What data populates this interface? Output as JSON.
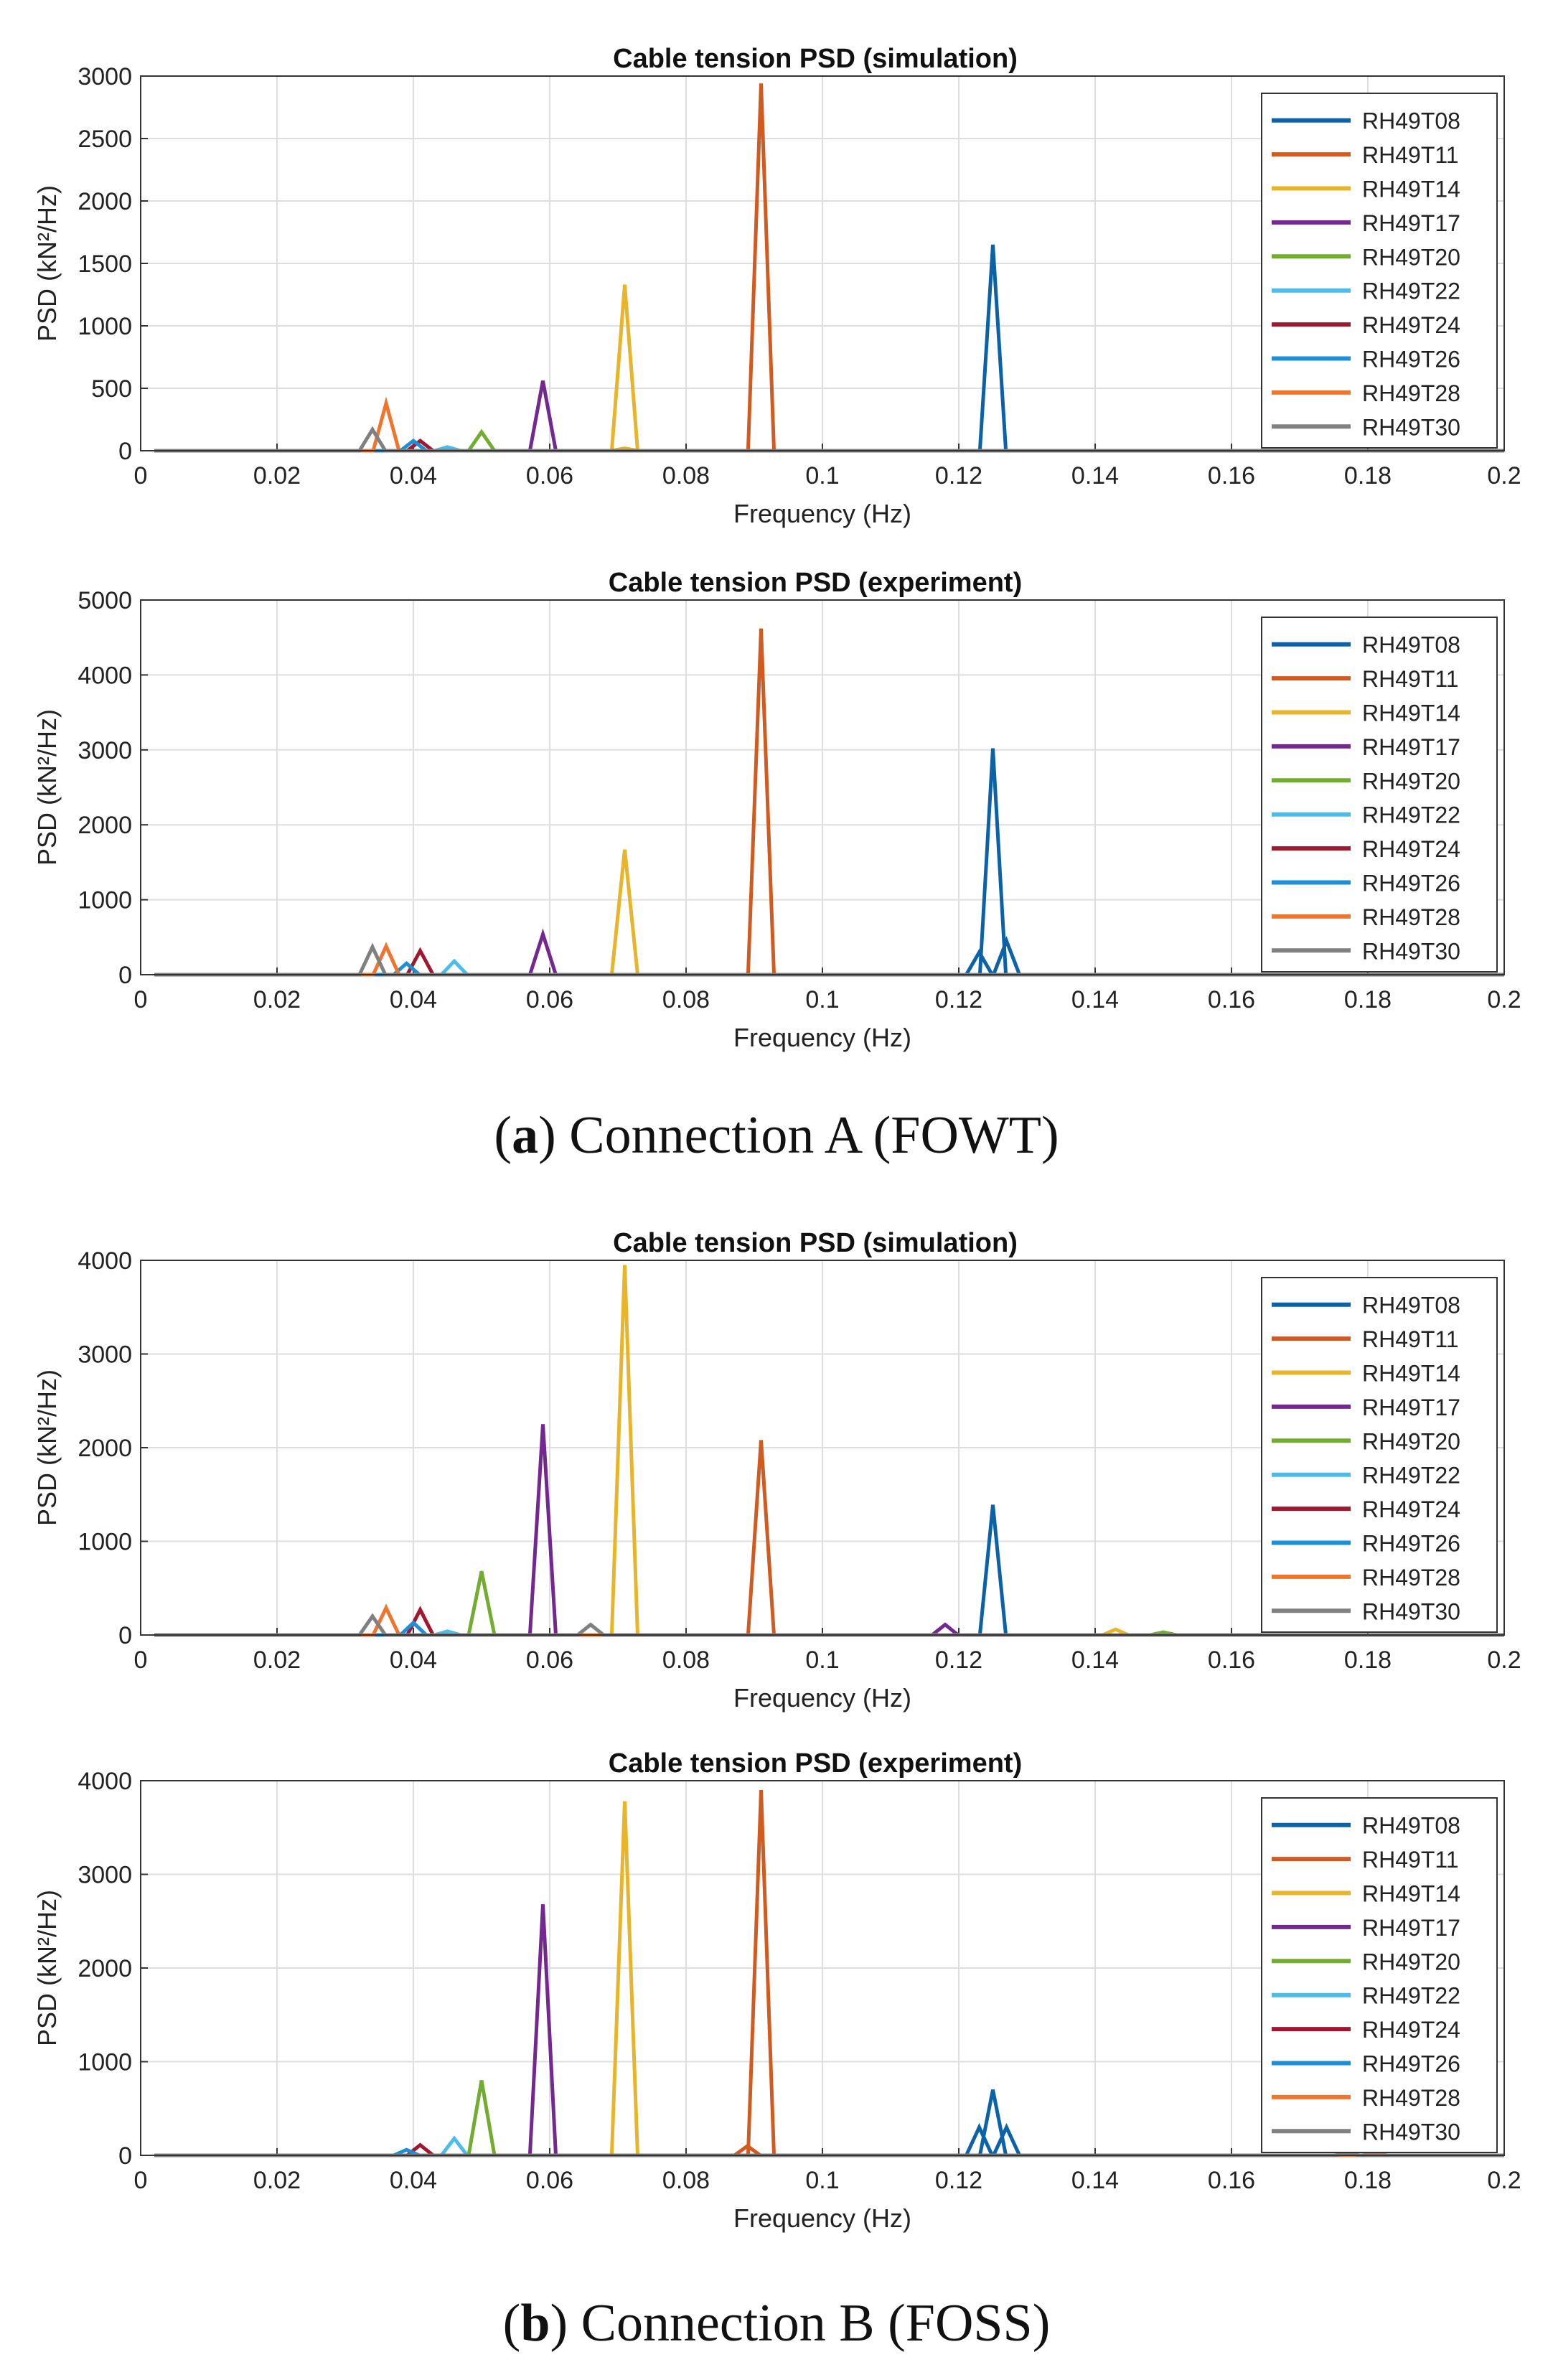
{
  "series_names": [
    "RH49T08",
    "RH49T11",
    "RH49T14",
    "RH49T17",
    "RH49T20",
    "RH49T22",
    "RH49T24",
    "RH49T26",
    "RH49T28",
    "RH49T30"
  ],
  "series_colors": [
    "#0b62a6",
    "#d05a1f",
    "#e7b42a",
    "#74278f",
    "#72ac30",
    "#4cbce8",
    "#a01730",
    "#1c8fd6",
    "#f0742c",
    "#808080"
  ],
  "captions": {
    "a_label": "a",
    "a_text": "Connection A (FOWT)",
    "b_label": "b",
    "b_text": "Connection B (FOSS)"
  },
  "chart_data": [
    {
      "type": "line",
      "title": "Cable tension PSD (simulation)",
      "xlabel": "Frequency (Hz)",
      "ylabel": "PSD (kN²/Hz)",
      "xlim": [
        0,
        0.2
      ],
      "ylim": [
        0,
        3000
      ],
      "xticks": [
        "0",
        "0.02",
        "0.04",
        "0.06",
        "0.08",
        "0.1",
        "0.12",
        "0.14",
        "0.16",
        "0.18",
        "0.2"
      ],
      "yticks": [
        "0",
        "500",
        "1000",
        "1500",
        "2000",
        "2500",
        "3000"
      ],
      "grid": true,
      "legend": "top-right",
      "peaks": [
        {
          "series": 0,
          "f": 0.125,
          "v": 1650
        },
        {
          "series": 1,
          "f": 0.091,
          "v": 2940
        },
        {
          "series": 2,
          "f": 0.071,
          "v": 1330
        },
        {
          "series": 2,
          "f": 0.071,
          "v": 20
        },
        {
          "series": 3,
          "f": 0.059,
          "v": 560
        },
        {
          "series": 4,
          "f": 0.05,
          "v": 150
        },
        {
          "series": 5,
          "f": 0.045,
          "v": 30
        },
        {
          "series": 6,
          "f": 0.041,
          "v": 80
        },
        {
          "series": 7,
          "f": 0.04,
          "v": 80
        },
        {
          "series": 8,
          "f": 0.036,
          "v": 380
        },
        {
          "series": 9,
          "f": 0.034,
          "v": 170
        }
      ]
    },
    {
      "type": "line",
      "title": "Cable tension PSD (experiment)",
      "xlabel": "Frequency (Hz)",
      "ylabel": "PSD (kN²/Hz)",
      "xlim": [
        0,
        0.2
      ],
      "ylim": [
        0,
        5000
      ],
      "xticks": [
        "0",
        "0.02",
        "0.04",
        "0.06",
        "0.08",
        "0.1",
        "0.12",
        "0.14",
        "0.16",
        "0.18",
        "0.2"
      ],
      "yticks": [
        "0",
        "1000",
        "2000",
        "3000",
        "4000",
        "5000"
      ],
      "grid": true,
      "legend": "top-right",
      "peaks": [
        {
          "series": 0,
          "f": 0.125,
          "v": 3020
        },
        {
          "series": 0,
          "f": 0.127,
          "v": 450
        },
        {
          "series": 0,
          "f": 0.123,
          "v": 300
        },
        {
          "series": 1,
          "f": 0.091,
          "v": 4620
        },
        {
          "series": 2,
          "f": 0.071,
          "v": 1670
        },
        {
          "series": 3,
          "f": 0.059,
          "v": 540
        },
        {
          "series": 5,
          "f": 0.046,
          "v": 180
        },
        {
          "series": 6,
          "f": 0.041,
          "v": 320
        },
        {
          "series": 7,
          "f": 0.039,
          "v": 150
        },
        {
          "series": 8,
          "f": 0.036,
          "v": 380
        },
        {
          "series": 9,
          "f": 0.034,
          "v": 370
        }
      ]
    },
    {
      "type": "line",
      "title": "Cable tension PSD (simulation)",
      "xlabel": "Frequency (Hz)",
      "ylabel": "PSD (kN²/Hz)",
      "xlim": [
        0,
        0.2
      ],
      "ylim": [
        0,
        4000
      ],
      "xticks": [
        "0",
        "0.02",
        "0.04",
        "0.06",
        "0.08",
        "0.1",
        "0.12",
        "0.14",
        "0.16",
        "0.18",
        "0.2"
      ],
      "yticks": [
        "0",
        "1000",
        "2000",
        "3000",
        "4000"
      ],
      "grid": true,
      "legend": "top-right",
      "peaks": [
        {
          "series": 0,
          "f": 0.125,
          "v": 1390
        },
        {
          "series": 1,
          "f": 0.091,
          "v": 2080
        },
        {
          "series": 2,
          "f": 0.071,
          "v": 3950
        },
        {
          "series": 2,
          "f": 0.143,
          "v": 60
        },
        {
          "series": 3,
          "f": 0.059,
          "v": 2250
        },
        {
          "series": 3,
          "f": 0.118,
          "v": 110
        },
        {
          "series": 4,
          "f": 0.05,
          "v": 680
        },
        {
          "series": 4,
          "f": 0.15,
          "v": 30
        },
        {
          "series": 5,
          "f": 0.045,
          "v": 40
        },
        {
          "series": 6,
          "f": 0.041,
          "v": 270
        },
        {
          "series": 7,
          "f": 0.04,
          "v": 130
        },
        {
          "series": 8,
          "f": 0.036,
          "v": 290
        },
        {
          "series": 9,
          "f": 0.034,
          "v": 200
        },
        {
          "series": 9,
          "f": 0.066,
          "v": 110
        }
      ]
    },
    {
      "type": "line",
      "title": "Cable tension PSD (experiment)",
      "xlabel": "Frequency (Hz)",
      "ylabel": "PSD (kN²/Hz)",
      "xlim": [
        0,
        0.2
      ],
      "ylim": [
        0,
        4000
      ],
      "xticks": [
        "0",
        "0.02",
        "0.04",
        "0.06",
        "0.08",
        "0.1",
        "0.12",
        "0.14",
        "0.16",
        "0.18",
        "0.2"
      ],
      "yticks": [
        "0",
        "1000",
        "2000",
        "3000",
        "4000"
      ],
      "grid": true,
      "legend": "top-right",
      "peaks": [
        {
          "series": 0,
          "f": 0.125,
          "v": 700
        },
        {
          "series": 0,
          "f": 0.123,
          "v": 300
        },
        {
          "series": 0,
          "f": 0.127,
          "v": 300
        },
        {
          "series": 1,
          "f": 0.091,
          "v": 3900
        },
        {
          "series": 1,
          "f": 0.089,
          "v": 100
        },
        {
          "series": 2,
          "f": 0.071,
          "v": 3780
        },
        {
          "series": 3,
          "f": 0.059,
          "v": 2680
        },
        {
          "series": 4,
          "f": 0.05,
          "v": 800
        },
        {
          "series": 5,
          "f": 0.046,
          "v": 180
        },
        {
          "series": 6,
          "f": 0.041,
          "v": 110
        },
        {
          "series": 7,
          "f": 0.039,
          "v": 60
        },
        {
          "series": 8,
          "f": 0.181,
          "v": 20
        },
        {
          "series": 9,
          "f": 0.177,
          "v": 20
        }
      ]
    }
  ]
}
